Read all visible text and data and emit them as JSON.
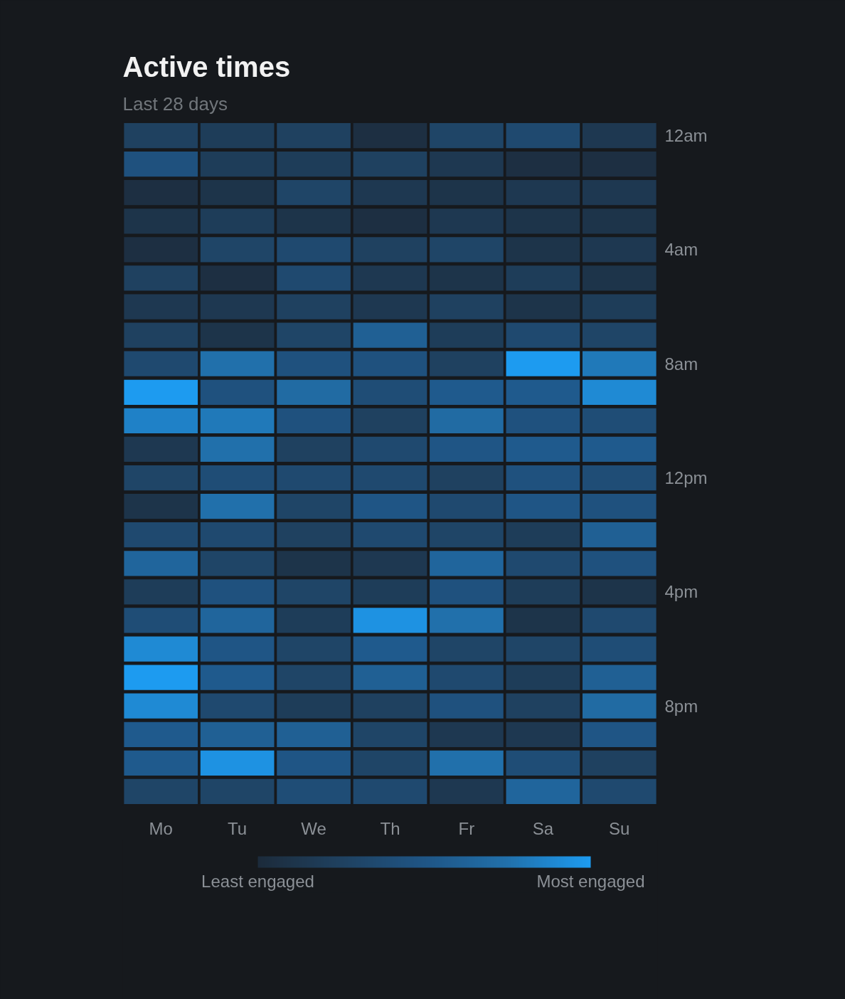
{
  "chart_data": {
    "type": "heatmap",
    "title": "Active times",
    "subtitle": "Last 28 days",
    "categories": [
      "Mo",
      "Tu",
      "We",
      "Th",
      "Fr",
      "Sa",
      "Su"
    ],
    "y_categories": [
      "12am",
      null,
      null,
      null,
      "4am",
      null,
      null,
      null,
      "8am",
      null,
      null,
      null,
      "12pm",
      null,
      null,
      null,
      "4pm",
      null,
      null,
      null,
      "8pm",
      null,
      null,
      null
    ],
    "cells": [
      [
        0.25,
        0.2,
        0.25,
        0.05,
        0.3,
        0.35,
        0.15
      ],
      [
        0.45,
        0.2,
        0.2,
        0.25,
        0.15,
        0.05,
        0.05
      ],
      [
        0.05,
        0.1,
        0.3,
        0.15,
        0.1,
        0.15,
        0.15
      ],
      [
        0.1,
        0.2,
        0.1,
        0.05,
        0.15,
        0.1,
        0.1
      ],
      [
        0.05,
        0.3,
        0.35,
        0.25,
        0.3,
        0.1,
        0.15
      ],
      [
        0.25,
        0.05,
        0.35,
        0.15,
        0.1,
        0.2,
        0.1
      ],
      [
        0.15,
        0.15,
        0.25,
        0.15,
        0.25,
        0.1,
        0.2
      ],
      [
        0.25,
        0.1,
        0.3,
        0.6,
        0.2,
        0.35,
        0.3
      ],
      [
        0.35,
        0.75,
        0.45,
        0.45,
        0.25,
        1.0,
        0.8
      ],
      [
        1.0,
        0.45,
        0.7,
        0.4,
        0.55,
        0.55,
        0.9
      ],
      [
        0.85,
        0.8,
        0.45,
        0.25,
        0.7,
        0.45,
        0.4
      ],
      [
        0.15,
        0.75,
        0.25,
        0.35,
        0.5,
        0.55,
        0.55
      ],
      [
        0.3,
        0.4,
        0.35,
        0.35,
        0.25,
        0.45,
        0.4
      ],
      [
        0.1,
        0.75,
        0.3,
        0.5,
        0.35,
        0.5,
        0.45
      ],
      [
        0.35,
        0.35,
        0.25,
        0.35,
        0.3,
        0.2,
        0.6
      ],
      [
        0.65,
        0.3,
        0.1,
        0.15,
        0.65,
        0.35,
        0.45
      ],
      [
        0.2,
        0.45,
        0.3,
        0.2,
        0.45,
        0.2,
        0.1
      ],
      [
        0.4,
        0.65,
        0.2,
        0.95,
        0.75,
        0.1,
        0.35
      ],
      [
        0.9,
        0.5,
        0.3,
        0.55,
        0.3,
        0.3,
        0.4
      ],
      [
        1.0,
        0.55,
        0.3,
        0.6,
        0.35,
        0.2,
        0.6
      ],
      [
        0.9,
        0.35,
        0.2,
        0.25,
        0.45,
        0.25,
        0.7
      ],
      [
        0.55,
        0.6,
        0.6,
        0.3,
        0.15,
        0.15,
        0.5
      ],
      [
        0.55,
        0.95,
        0.5,
        0.3,
        0.75,
        0.4,
        0.25
      ],
      [
        0.3,
        0.3,
        0.4,
        0.35,
        0.15,
        0.65,
        0.35
      ]
    ],
    "colors": [
      "#1c2b3b",
      "#1f4160",
      "#1f5585",
      "#2170ab",
      "#1d9bf0"
    ],
    "clim": [
      0,
      1
    ],
    "cticks": [
      {
        "value": 0,
        "label": "Least engaged"
      },
      {
        "value": 1,
        "label": "Most engaged"
      }
    ]
  }
}
